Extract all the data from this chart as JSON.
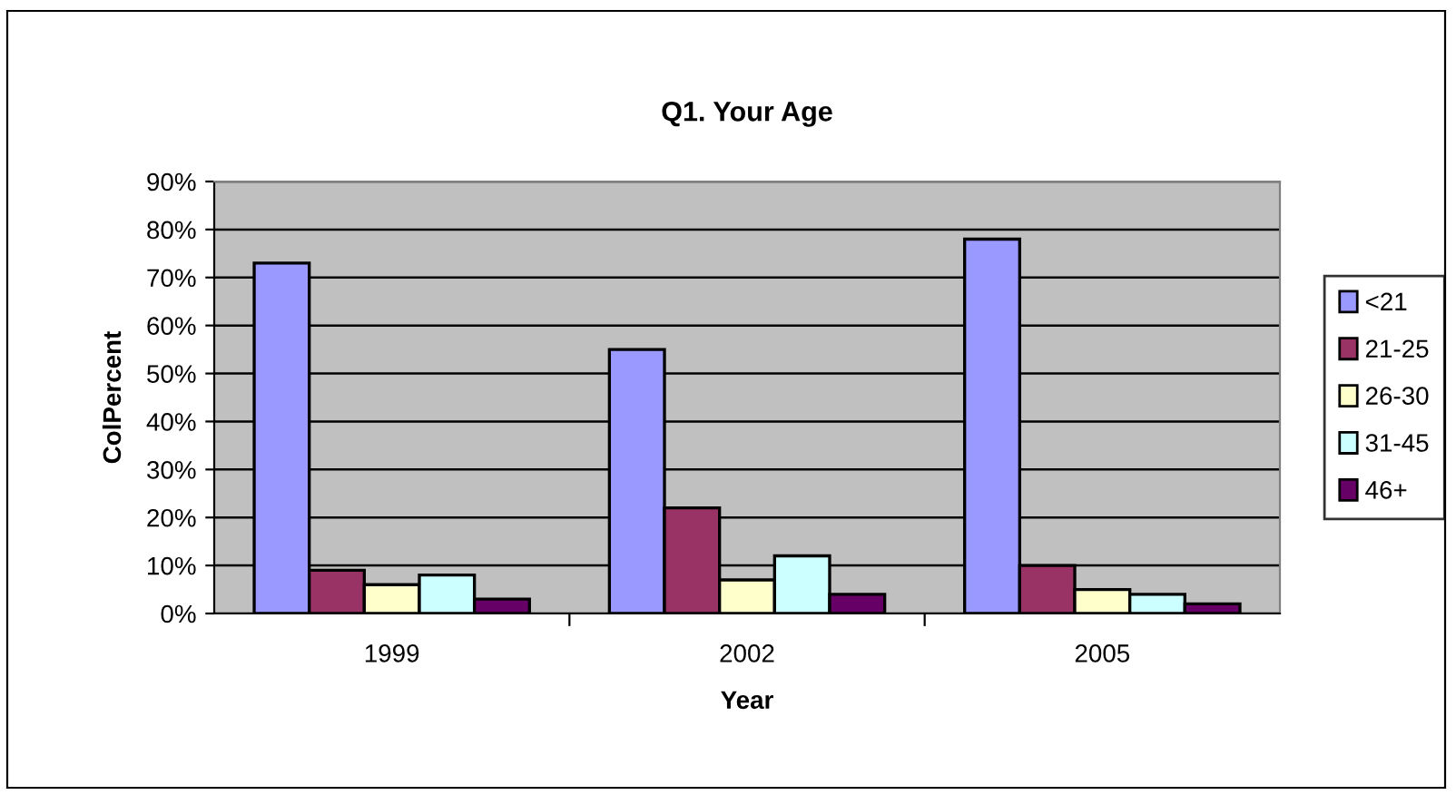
{
  "chart_data": {
    "type": "bar",
    "title": "Q1. Your Age",
    "xlabel": "Year",
    "ylabel": "ColPercent",
    "categories": [
      "1999",
      "2002",
      "2005"
    ],
    "series": [
      {
        "name": "<21",
        "color": "#9999ff",
        "values": [
          73,
          55,
          78
        ]
      },
      {
        "name": "21-25",
        "color": "#993366",
        "values": [
          9,
          22,
          10
        ]
      },
      {
        "name": "26-30",
        "color": "#ffffcc",
        "values": [
          6,
          7,
          5
        ]
      },
      {
        "name": "31-45",
        "color": "#ccffff",
        "values": [
          8,
          12,
          4
        ]
      },
      {
        "name": "46+",
        "color": "#660066",
        "values": [
          3,
          4,
          2
        ]
      }
    ],
    "ylim": [
      0,
      90
    ],
    "yticks": [
      {
        "value": 0,
        "label": "0%"
      },
      {
        "value": 10,
        "label": "10%"
      },
      {
        "value": 20,
        "label": "20%"
      },
      {
        "value": 30,
        "label": "30%"
      },
      {
        "value": 40,
        "label": "40%"
      },
      {
        "value": 50,
        "label": "50%"
      },
      {
        "value": 60,
        "label": "60%"
      },
      {
        "value": 70,
        "label": "70%"
      },
      {
        "value": 80,
        "label": "80%"
      },
      {
        "value": 90,
        "label": "90%"
      }
    ],
    "grid": "y",
    "legend": "right"
  }
}
